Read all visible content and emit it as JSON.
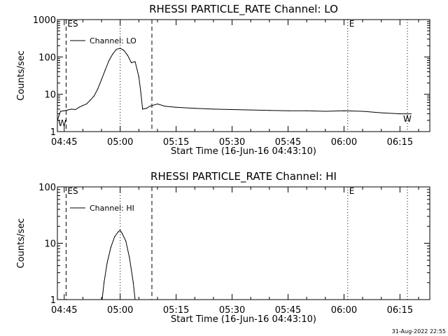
{
  "chart_data": [
    {
      "type": "line",
      "title": "RHESSI PARTICLE_RATE Channel: LO",
      "xlabel": "Start Time (16-Jun-16 04:43:10)",
      "ylabel": "Counts/sec",
      "y_scale": "log",
      "ylim": [
        1,
        1000
      ],
      "xlim": [
        "04:43:10",
        "06:23:00"
      ],
      "x_ticks": [
        "04:45",
        "05:00",
        "05:15",
        "05:30",
        "05:45",
        "06:00",
        "06:15"
      ],
      "y_ticks": [
        "1",
        "10",
        "100",
        "1000"
      ],
      "legend": {
        "label": "Channel: LO",
        "position": "top-left"
      },
      "markers": [
        {
          "label": "ES",
          "time": "04:45:30",
          "style": "dashed"
        },
        {
          "time": "05:00:00",
          "style": "dotted"
        },
        {
          "time": "05:08:30",
          "style": "dashed"
        },
        {
          "label": "E",
          "time": "06:01:00",
          "style": "dotted"
        },
        {
          "time": "06:17:00",
          "style": "dotted"
        }
      ],
      "edge_labels": [
        "W",
        "W"
      ],
      "series": [
        {
          "name": "Channel: LO",
          "x": [
            "04:43:10",
            "04:44:00",
            "04:45:00",
            "04:46:00",
            "04:47:00",
            "04:48:00",
            "04:49:00",
            "04:50:00",
            "04:51:00",
            "04:52:00",
            "04:53:00",
            "04:54:00",
            "04:55:00",
            "04:56:00",
            "04:57:00",
            "04:58:00",
            "04:59:00",
            "05:00:00",
            "05:01:00",
            "05:02:00",
            "05:03:00",
            "05:04:00",
            "05:05:00",
            "05:05:30",
            "05:06:00",
            "05:07:00",
            "05:08:00",
            "05:10:00",
            "05:12:00",
            "05:15:00",
            "05:20:00",
            "05:25:00",
            "05:30:00",
            "05:35:00",
            "05:40:00",
            "05:45:00",
            "05:50:00",
            "05:55:00",
            "06:00:00",
            "06:05:00",
            "06:10:00",
            "06:15:00",
            "06:18:00"
          ],
          "values": [
            2.0,
            3.5,
            3.6,
            3.8,
            4.0,
            3.9,
            4.5,
            5.0,
            5.5,
            7.0,
            9.0,
            14,
            25,
            45,
            80,
            120,
            160,
            170,
            150,
            110,
            70,
            75,
            30,
            12,
            4.0,
            4.2,
            4.8,
            5.5,
            4.8,
            4.5,
            4.2,
            4.0,
            3.9,
            3.8,
            3.7,
            3.6,
            3.6,
            3.5,
            3.6,
            3.5,
            3.2,
            3.0,
            3.0
          ]
        }
      ]
    },
    {
      "type": "line",
      "title": "RHESSI PARTICLE_RATE Channel: HI",
      "xlabel": "Start Time (16-Jun-16 04:43:10)",
      "ylabel": "Counts/sec",
      "y_scale": "log",
      "ylim": [
        1,
        100
      ],
      "xlim": [
        "04:43:10",
        "06:23:00"
      ],
      "x_ticks": [
        "04:45",
        "05:00",
        "05:15",
        "05:30",
        "05:45",
        "06:00",
        "06:15"
      ],
      "y_ticks": [
        "1",
        "10",
        "100"
      ],
      "legend": {
        "label": "Channel: HI",
        "position": "top-left"
      },
      "markers": [
        {
          "label": "ES",
          "time": "04:45:30",
          "style": "dashed"
        },
        {
          "time": "05:00:00",
          "style": "dotted"
        },
        {
          "time": "05:08:30",
          "style": "dashed"
        },
        {
          "label": "E",
          "time": "06:01:00",
          "style": "dotted"
        },
        {
          "time": "06:17:00",
          "style": "dotted"
        }
      ],
      "series": [
        {
          "name": "Channel: HI",
          "x": [
            "04:55:10",
            "04:55:40",
            "04:56:30",
            "04:57:30",
            "04:58:30",
            "04:59:30",
            "05:00:00",
            "05:00:30",
            "05:01:30",
            "05:02:30",
            "05:03:30",
            "05:04:00"
          ],
          "values": [
            1.0,
            2.0,
            4.5,
            8.5,
            13,
            16,
            17,
            15,
            11,
            5.5,
            2.0,
            1.0
          ]
        }
      ]
    }
  ],
  "footer": {
    "timestamp": "31-Aug-2022 22:55"
  }
}
